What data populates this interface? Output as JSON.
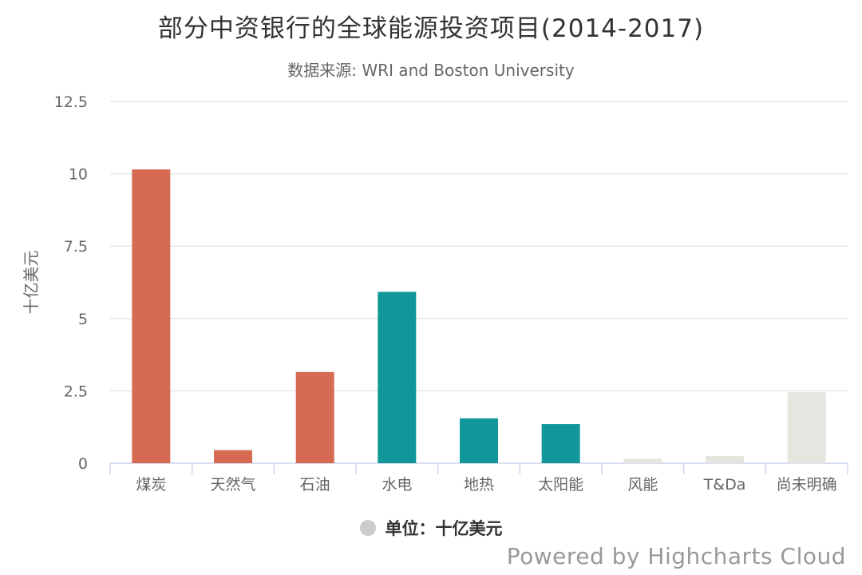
{
  "chart_data": {
    "type": "bar",
    "title": "部分中资银行的全球能源投资项目(2014-2017)",
    "subtitle": "数据来源: WRI and Boston University",
    "ylabel": "十亿美元",
    "xlabel": "",
    "ylim": [
      0,
      12.5
    ],
    "yticks": [
      "0",
      "2.5",
      "5",
      "7.5",
      "10",
      "12.5"
    ],
    "grid": true,
    "categories": [
      "煤炭",
      "天然气",
      "石油",
      "水电",
      "地热",
      "太阳能",
      "风能",
      "T&Da",
      "尚未明确"
    ],
    "values": [
      10.15,
      0.45,
      3.15,
      5.92,
      1.55,
      1.35,
      0.15,
      0.25,
      2.45
    ],
    "colors": [
      "#d66a53",
      "#d66a53",
      "#d66a53",
      "#0f9799",
      "#0f9799",
      "#0f9799",
      "#e7e5df",
      "#e7e5df",
      "#e7e5df"
    ],
    "legend": {
      "label": "单位：十亿美元",
      "color": "#cccccc",
      "placement": "bottom-center"
    }
  },
  "credits": "Powered by Highcharts Cloud",
  "style": {
    "grid_color": "#e6e6e6",
    "axis_color": "#ccd6eb",
    "tick_label_color": "#666666"
  }
}
